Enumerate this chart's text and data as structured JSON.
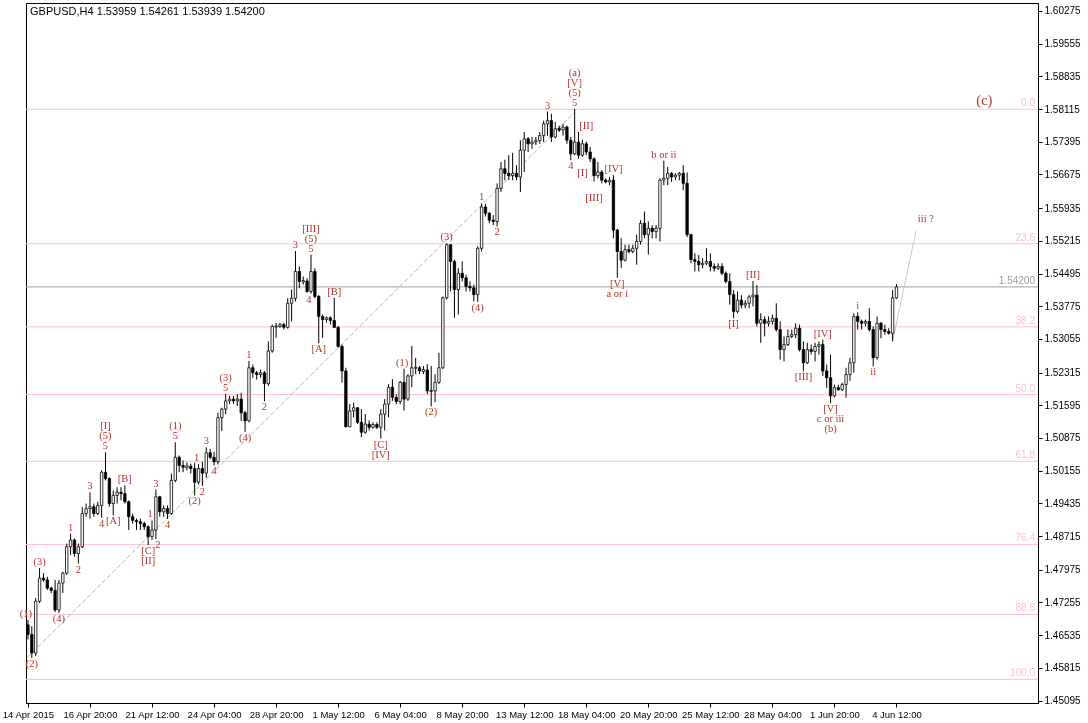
{
  "chart_data": {
    "type": "candlestick",
    "title": "GBPUSD,H4 1.53959 1.54261 1.53939 1.54200",
    "color": "#000000",
    "categories": [
      "14 Apr 2015",
      null,
      null,
      null,
      null,
      null,
      null,
      null,
      null,
      null,
      null,
      null,
      null,
      null,
      null,
      null,
      "16 Apr 20:00",
      null,
      null,
      null,
      null,
      null,
      null,
      null,
      null,
      null,
      null,
      null,
      null,
      null,
      null,
      null,
      "21 Apr 12:00",
      null,
      null,
      null,
      null,
      null,
      null,
      null,
      null,
      null,
      null,
      null,
      null,
      null,
      null,
      null,
      "24 Apr 04:00",
      null,
      null,
      null,
      null,
      null,
      null,
      null,
      null,
      null,
      null,
      null,
      null,
      null,
      null,
      null,
      "28 Apr 20:00",
      null,
      null,
      null,
      null,
      null,
      null,
      null,
      null,
      null,
      null,
      null,
      null,
      null,
      null,
      null,
      "1 May 12:00",
      null,
      null,
      null,
      null,
      null,
      null,
      null,
      null,
      null,
      null,
      null,
      null,
      null,
      null,
      null,
      "6 May 04:00",
      null,
      null,
      null,
      null,
      null,
      null,
      null,
      null,
      null,
      null,
      null,
      null,
      null,
      null,
      null,
      "8 May 20:00",
      null,
      null,
      null,
      null,
      null,
      null,
      null,
      null,
      null,
      null,
      null,
      null,
      null,
      null,
      null,
      "13 May 12:00",
      null,
      null,
      null,
      null,
      null,
      null,
      null,
      null,
      null,
      null,
      null,
      null,
      null,
      null,
      null,
      "18 May 04:00",
      null,
      null,
      null,
      null,
      null,
      null,
      null,
      null,
      null,
      null,
      null,
      null,
      null,
      null,
      null,
      "20 May 20:00",
      null,
      null,
      null,
      null,
      null,
      null,
      null,
      null,
      null,
      null,
      null,
      null,
      null,
      null,
      null,
      "25 May 12:00",
      null,
      null,
      null,
      null,
      null,
      null,
      null,
      null,
      null,
      null,
      null,
      null,
      null,
      null,
      null,
      "28 May 04:00",
      null,
      null,
      null,
      null,
      null,
      null,
      null,
      null,
      null,
      null,
      null,
      null,
      null,
      null,
      null,
      "1 Jun 20:00",
      null,
      null,
      null,
      null,
      null,
      null,
      null,
      null,
      null,
      null,
      null,
      null,
      null,
      null,
      null,
      "4 Jun 12:00",
      null,
      null,
      null,
      null,
      null,
      null,
      null,
      null,
      null,
      null,
      null,
      null,
      null,
      null,
      null,
      null,
      null,
      null,
      null,
      null,
      null,
      null,
      null,
      null,
      null,
      null,
      null,
      null,
      null,
      null,
      null,
      null,
      null,
      null,
      null,
      null
    ],
    "ohlc": [
      [
        1.4676,
        1.4687,
        1.4644,
        1.4655
      ],
      [
        1.4655,
        1.4673,
        1.4603,
        1.4614
      ],
      [
        1.4614,
        1.4735,
        1.4607,
        1.4728
      ],
      [
        1.4728,
        1.4801,
        1.4724,
        1.4779
      ],
      [
        1.4779,
        1.479,
        1.4771,
        1.4775
      ],
      [
        1.4775,
        1.4782,
        1.4753,
        1.4757
      ],
      [
        1.4757,
        1.476,
        1.4746,
        1.4752
      ],
      [
        1.4752,
        1.4775,
        1.4704,
        1.4709
      ],
      [
        1.4709,
        1.4775,
        1.4702,
        1.4768
      ],
      [
        1.4768,
        1.4793,
        1.4746,
        1.479
      ],
      [
        1.479,
        1.4855,
        1.4786,
        1.4848
      ],
      [
        1.4848,
        1.4877,
        1.483,
        1.4863
      ],
      [
        1.4863,
        1.4866,
        1.4826,
        1.4833
      ],
      [
        1.4833,
        1.4855,
        1.4811,
        1.4848
      ],
      [
        1.4848,
        1.4936,
        1.4845,
        1.4921
      ],
      [
        1.4921,
        1.4943,
        1.4914,
        1.4932
      ],
      [
        1.4932,
        1.4968,
        1.491,
        1.4936
      ],
      [
        1.4936,
        1.4943,
        1.4914,
        1.4921
      ],
      [
        1.4921,
        1.4947,
        1.4918,
        1.4939
      ],
      [
        1.4939,
        1.5016,
        1.4912,
        1.5012
      ],
      [
        1.5012,
        1.5056,
        1.4994,
        1.4998
      ],
      [
        1.4998,
        1.5001,
        1.4936,
        1.4943
      ],
      [
        1.4943,
        1.4972,
        1.4917,
        1.4961
      ],
      [
        1.4961,
        1.4979,
        1.4943,
        1.4968
      ],
      [
        1.4968,
        1.4979,
        1.495,
        1.4965
      ],
      [
        1.4965,
        1.4983,
        1.4943,
        1.4947
      ],
      [
        1.4947,
        1.495,
        1.4885,
        1.4914
      ],
      [
        1.4914,
        1.4921,
        1.4899,
        1.4906
      ],
      [
        1.4906,
        1.491,
        1.4885,
        1.4903
      ],
      [
        1.4903,
        1.491,
        1.4885,
        1.4899
      ],
      [
        1.4899,
        1.4903,
        1.4885,
        1.4892
      ],
      [
        1.4892,
        1.4895,
        1.4852,
        1.487
      ],
      [
        1.487,
        1.4906,
        1.4863,
        1.4885
      ],
      [
        1.4885,
        1.4974,
        1.4865,
        1.4958
      ],
      [
        1.4958,
        1.496,
        1.4914,
        1.4925
      ],
      [
        1.4925,
        1.4939,
        1.4914,
        1.4932
      ],
      [
        1.4932,
        1.4939,
        1.4909,
        1.4921
      ],
      [
        1.4921,
        1.5009,
        1.4918,
        1.4994
      ],
      [
        1.4994,
        1.5078,
        1.499,
        1.5045
      ],
      [
        1.5045,
        1.5049,
        1.5012,
        1.5027
      ],
      [
        1.5027,
        1.5038,
        1.5012,
        1.5023
      ],
      [
        1.5023,
        1.5034,
        1.5016,
        1.5025
      ],
      [
        1.5025,
        1.5031,
        1.5009,
        1.502
      ],
      [
        1.502,
        1.5033,
        1.4961,
        1.499
      ],
      [
        1.499,
        1.503,
        1.4985,
        1.502
      ],
      [
        1.502,
        1.5035,
        1.4982,
        1.501
      ],
      [
        1.501,
        1.5067,
        1.5,
        1.5055
      ],
      [
        1.5055,
        1.5063,
        1.5041,
        1.5045
      ],
      [
        1.5045,
        1.5057,
        1.5027,
        1.5035
      ],
      [
        1.5035,
        1.5143,
        1.5029,
        1.5132
      ],
      [
        1.5132,
        1.5154,
        1.5103,
        1.5151
      ],
      [
        1.5151,
        1.5185,
        1.514,
        1.5169
      ],
      [
        1.5169,
        1.518,
        1.5162,
        1.5173
      ],
      [
        1.5173,
        1.518,
        1.5162,
        1.5169
      ],
      [
        1.5169,
        1.5184,
        1.5158,
        1.5173
      ],
      [
        1.5173,
        1.5187,
        1.5125,
        1.5143
      ],
      [
        1.5143,
        1.5147,
        1.5101,
        1.5125
      ],
      [
        1.5125,
        1.5257,
        1.5122,
        1.5242
      ],
      [
        1.5242,
        1.5249,
        1.522,
        1.5231
      ],
      [
        1.5231,
        1.5235,
        1.5216,
        1.5227
      ],
      [
        1.5227,
        1.5238,
        1.522,
        1.5231
      ],
      [
        1.5231,
        1.5235,
        1.5168,
        1.5207
      ],
      [
        1.5207,
        1.53,
        1.5202,
        1.5279
      ],
      [
        1.5279,
        1.5337,
        1.5275,
        1.5333
      ],
      [
        1.5333,
        1.5341,
        1.5308,
        1.5333
      ],
      [
        1.5333,
        1.5341,
        1.533,
        1.5337
      ],
      [
        1.5337,
        1.5341,
        1.5326,
        1.5331
      ],
      [
        1.5331,
        1.5395,
        1.5328,
        1.5384
      ],
      [
        1.5384,
        1.5414,
        1.5344,
        1.5395
      ],
      [
        1.5395,
        1.5499,
        1.5388,
        1.5454
      ],
      [
        1.5454,
        1.5465,
        1.5417,
        1.5432
      ],
      [
        1.5432,
        1.5443,
        1.5425,
        1.5433
      ],
      [
        1.5433,
        1.5439,
        1.5407,
        1.541
      ],
      [
        1.541,
        1.5491,
        1.5405,
        1.5454
      ],
      [
        1.5454,
        1.5461,
        1.5395,
        1.5399
      ],
      [
        1.5399,
        1.5402,
        1.5296,
        1.5355
      ],
      [
        1.5355,
        1.5359,
        1.5308,
        1.5348
      ],
      [
        1.5348,
        1.5355,
        1.5341,
        1.5352
      ],
      [
        1.5352,
        1.5355,
        1.5337,
        1.5346
      ],
      [
        1.5346,
        1.5396,
        1.533,
        1.5331
      ],
      [
        1.5331,
        1.5334,
        1.5286,
        1.5289
      ],
      [
        1.5289,
        1.5293,
        1.5209,
        1.5235
      ],
      [
        1.5235,
        1.5242,
        1.5111,
        1.5112
      ],
      [
        1.5112,
        1.5162,
        1.5111,
        1.5147
      ],
      [
        1.5147,
        1.5165,
        1.5133,
        1.5154
      ],
      [
        1.5154,
        1.5155,
        1.5118,
        1.5122
      ],
      [
        1.5122,
        1.5151,
        1.5089,
        1.51
      ],
      [
        1.51,
        1.514,
        1.5097,
        1.5118
      ],
      [
        1.5118,
        1.5126,
        1.5104,
        1.5111
      ],
      [
        1.5111,
        1.5122,
        1.5108,
        1.5117
      ],
      [
        1.5117,
        1.5122,
        1.5107,
        1.5111
      ],
      [
        1.5111,
        1.5151,
        1.5086,
        1.514
      ],
      [
        1.514,
        1.5173,
        1.5104,
        1.5162
      ],
      [
        1.5162,
        1.5206,
        1.5133,
        1.5199
      ],
      [
        1.5199,
        1.5217,
        1.5169,
        1.5177
      ],
      [
        1.5177,
        1.5184,
        1.5162,
        1.5168
      ],
      [
        1.5168,
        1.5213,
        1.5162,
        1.521
      ],
      [
        1.521,
        1.524,
        1.5148,
        1.5173
      ],
      [
        1.5173,
        1.5228,
        1.5169,
        1.5224
      ],
      [
        1.5224,
        1.529,
        1.5199,
        1.5242
      ],
      [
        1.5242,
        1.5264,
        1.5228,
        1.5242
      ],
      [
        1.5242,
        1.5246,
        1.5228,
        1.5235
      ],
      [
        1.5235,
        1.5246,
        1.5228,
        1.5237
      ],
      [
        1.5237,
        1.525,
        1.5184,
        1.5191
      ],
      [
        1.5191,
        1.5246,
        1.5157,
        1.5191
      ],
      [
        1.5191,
        1.5228,
        1.5166,
        1.521
      ],
      [
        1.521,
        1.5275,
        1.5206,
        1.5242
      ],
      [
        1.5242,
        1.5399,
        1.5239,
        1.5396
      ],
      [
        1.5396,
        1.5516,
        1.5392,
        1.5513
      ],
      [
        1.5513,
        1.5514,
        1.541,
        1.5476
      ],
      [
        1.5476,
        1.548,
        1.5352,
        1.5414
      ],
      [
        1.5414,
        1.5461,
        1.5359,
        1.545
      ],
      [
        1.545,
        1.5476,
        1.5432,
        1.544
      ],
      [
        1.544,
        1.5447,
        1.541,
        1.5421
      ],
      [
        1.5421,
        1.5432,
        1.541,
        1.5418
      ],
      [
        1.5418,
        1.5425,
        1.5388,
        1.5403
      ],
      [
        1.5403,
        1.5509,
        1.5387,
        1.5505
      ],
      [
        1.5505,
        1.5604,
        1.5498,
        1.5596
      ],
      [
        1.5596,
        1.5603,
        1.5575,
        1.5582
      ],
      [
        1.5582,
        1.5585,
        1.556,
        1.5567
      ],
      [
        1.5567,
        1.5578,
        1.5556,
        1.5564
      ],
      [
        1.5564,
        1.5648,
        1.5553,
        1.5637
      ],
      [
        1.5637,
        1.5695,
        1.5629,
        1.568
      ],
      [
        1.568,
        1.57,
        1.5655,
        1.567
      ],
      [
        1.567,
        1.571,
        1.5655,
        1.5665
      ],
      [
        1.5665,
        1.5715,
        1.5655,
        1.567
      ],
      [
        1.567,
        1.5688,
        1.5655,
        1.5662
      ],
      [
        1.5662,
        1.5743,
        1.5629,
        1.5721
      ],
      [
        1.5721,
        1.5761,
        1.5673,
        1.5746
      ],
      [
        1.5746,
        1.575,
        1.5717,
        1.5735
      ],
      [
        1.5735,
        1.575,
        1.5724,
        1.5739
      ],
      [
        1.5739,
        1.575,
        1.5732,
        1.5742
      ],
      [
        1.5742,
        1.5761,
        1.5735,
        1.5753
      ],
      [
        1.5753,
        1.5786,
        1.5739,
        1.5779
      ],
      [
        1.5779,
        1.5806,
        1.5753,
        1.5786
      ],
      [
        1.5786,
        1.5801,
        1.5739,
        1.575
      ],
      [
        1.575,
        1.5783,
        1.5747,
        1.5768
      ],
      [
        1.5768,
        1.5775,
        1.5761,
        1.5766
      ],
      [
        1.5766,
        1.5779,
        1.5753,
        1.5772
      ],
      [
        1.5772,
        1.5775,
        1.5735,
        1.5743
      ],
      [
        1.5743,
        1.575,
        1.5699,
        1.5713
      ],
      [
        1.5713,
        1.5812,
        1.571,
        1.5739
      ],
      [
        1.5739,
        1.5761,
        1.5702,
        1.571
      ],
      [
        1.571,
        1.5744,
        1.5706,
        1.5735
      ],
      [
        1.5735,
        1.574,
        1.571,
        1.5717
      ],
      [
        1.5717,
        1.5728,
        1.5695,
        1.5702
      ],
      [
        1.5702,
        1.5705,
        1.5652,
        1.5665
      ],
      [
        1.5665,
        1.5695,
        1.5659,
        1.5673
      ],
      [
        1.5673,
        1.5677,
        1.5648,
        1.5655
      ],
      [
        1.5655,
        1.5659,
        1.5648,
        1.5651
      ],
      [
        1.5651,
        1.5662,
        1.5644,
        1.5655
      ],
      [
        1.5655,
        1.5666,
        1.5527,
        1.5545
      ],
      [
        1.5545,
        1.5548,
        1.544,
        1.5498
      ],
      [
        1.5498,
        1.5527,
        1.5462,
        1.5479
      ],
      [
        1.5479,
        1.5513,
        1.5476,
        1.5502
      ],
      [
        1.5502,
        1.5513,
        1.5494,
        1.5498
      ],
      [
        1.5498,
        1.5513,
        1.5494,
        1.5505
      ],
      [
        1.5505,
        1.5535,
        1.5469,
        1.552
      ],
      [
        1.552,
        1.5567,
        1.5513,
        1.556
      ],
      [
        1.556,
        1.5586,
        1.5527,
        1.5535
      ],
      [
        1.5535,
        1.5564,
        1.5491,
        1.5549
      ],
      [
        1.5549,
        1.5556,
        1.5527,
        1.5542
      ],
      [
        1.5542,
        1.5556,
        1.5527,
        1.5549
      ],
      [
        1.5549,
        1.5659,
        1.552,
        1.5655
      ],
      [
        1.5655,
        1.5698,
        1.5644,
        1.5659
      ],
      [
        1.5659,
        1.5684,
        1.5644,
        1.567
      ],
      [
        1.567,
        1.5673,
        1.5651,
        1.5662
      ],
      [
        1.5662,
        1.567,
        1.5655,
        1.5666
      ],
      [
        1.5666,
        1.5673,
        1.5655,
        1.567
      ],
      [
        1.567,
        1.5688,
        1.5633,
        1.5648
      ],
      [
        1.5648,
        1.5672,
        1.553,
        1.5535
      ],
      [
        1.5535,
        1.5537,
        1.5472,
        1.548
      ],
      [
        1.548,
        1.5494,
        1.5454,
        1.5476
      ],
      [
        1.5476,
        1.549,
        1.5454,
        1.5469
      ],
      [
        1.5469,
        1.5483,
        1.5461,
        1.5472
      ],
      [
        1.5472,
        1.5505,
        1.5468,
        1.5476
      ],
      [
        1.5476,
        1.5494,
        1.5454,
        1.5465
      ],
      [
        1.5465,
        1.5472,
        1.5454,
        1.5461
      ],
      [
        1.5461,
        1.5472,
        1.5457,
        1.5465
      ],
      [
        1.5465,
        1.5472,
        1.5446,
        1.545
      ],
      [
        1.545,
        1.5454,
        1.5428,
        1.5432
      ],
      [
        1.5432,
        1.545,
        1.5381,
        1.5403
      ],
      [
        1.5403,
        1.5413,
        1.5351,
        1.5366
      ],
      [
        1.5366,
        1.541,
        1.5362,
        1.5391
      ],
      [
        1.5391,
        1.5402,
        1.5373,
        1.538
      ],
      [
        1.538,
        1.5391,
        1.5373,
        1.5384
      ],
      [
        1.5384,
        1.5402,
        1.5373,
        1.5398
      ],
      [
        1.5398,
        1.5433,
        1.5377,
        1.5402
      ],
      [
        1.5402,
        1.5424,
        1.5333,
        1.534
      ],
      [
        1.534,
        1.5362,
        1.5297,
        1.5348
      ],
      [
        1.5348,
        1.5355,
        1.5311,
        1.534
      ],
      [
        1.534,
        1.5355,
        1.5333,
        1.5344
      ],
      [
        1.5344,
        1.5359,
        1.5337,
        1.5351
      ],
      [
        1.5351,
        1.5384,
        1.5322,
        1.5326
      ],
      [
        1.5326,
        1.5344,
        1.526,
        1.5282
      ],
      [
        1.5282,
        1.5311,
        1.5256,
        1.5293
      ],
      [
        1.5293,
        1.5326,
        1.529,
        1.5311
      ],
      [
        1.5311,
        1.5326,
        1.5307,
        1.5315
      ],
      [
        1.5315,
        1.534,
        1.5307,
        1.5329
      ],
      [
        1.5329,
        1.5337,
        1.5278,
        1.5282
      ],
      [
        1.5282,
        1.53,
        1.5234,
        1.5253
      ],
      [
        1.5253,
        1.5297,
        1.525,
        1.5282
      ],
      [
        1.5282,
        1.5293,
        1.5271,
        1.5278
      ],
      [
        1.5278,
        1.5297,
        1.5256,
        1.5289
      ],
      [
        1.5289,
        1.53,
        1.5271,
        1.5293
      ],
      [
        1.5293,
        1.5304,
        1.5224,
        1.5235
      ],
      [
        1.5235,
        1.5249,
        1.5198,
        1.522
      ],
      [
        1.522,
        1.5271,
        1.5164,
        1.518
      ],
      [
        1.518,
        1.5205,
        1.5177,
        1.5198
      ],
      [
        1.5198,
        1.5205,
        1.5191,
        1.5194
      ],
      [
        1.5194,
        1.5209,
        1.5191,
        1.5205
      ],
      [
        1.5205,
        1.5242,
        1.5176,
        1.5227
      ],
      [
        1.5227,
        1.5264,
        1.5213,
        1.5253
      ],
      [
        1.5253,
        1.5362,
        1.5231,
        1.5355
      ],
      [
        1.5355,
        1.5364,
        1.5326,
        1.5344
      ],
      [
        1.5344,
        1.5348,
        1.5326,
        1.534
      ],
      [
        1.534,
        1.5348,
        1.5333,
        1.5344
      ],
      [
        1.5344,
        1.5373,
        1.5322,
        1.5326
      ],
      [
        1.5326,
        1.5333,
        1.5245,
        1.5264
      ],
      [
        1.5264,
        1.5355,
        1.526,
        1.534
      ],
      [
        1.534,
        1.5343,
        1.5307,
        1.5326
      ],
      [
        1.5326,
        1.5337,
        1.5315,
        1.5322
      ],
      [
        1.5322,
        1.5329,
        1.5315,
        1.5318
      ],
      [
        1.5318,
        1.5413,
        1.53,
        1.5396
      ],
      [
        1.53959,
        1.54261,
        1.53939,
        1.542
      ],
      null,
      null,
      null,
      null,
      null,
      null,
      null,
      null,
      null,
      null,
      null,
      null,
      null,
      null,
      null,
      null,
      null,
      null,
      null,
      null,
      null,
      null,
      null,
      null,
      null,
      null,
      null,
      null,
      null,
      null,
      null,
      null,
      null,
      null,
      null,
      null
    ],
    "series": [
      {
        "type": "line",
        "color": "#b4b4b4",
        "line_style": "dashed",
        "values": [
          1.4606,
          1.4614,
          1.4623,
          1.4631,
          1.464,
          1.4648,
          1.4657,
          1.4665,
          1.4674,
          1.4682,
          1.4691,
          1.4699,
          1.4708,
          1.4716,
          1.4725,
          1.4733,
          1.4742,
          1.475,
          1.4759,
          1.4767,
          1.4776,
          1.4784,
          1.4793,
          1.4801,
          1.481,
          1.4818,
          1.4827,
          1.4835,
          1.4844,
          1.4852,
          1.4861,
          1.4869,
          1.4878,
          1.4886,
          1.4895,
          1.4903,
          1.4912,
          1.492,
          1.4929,
          1.4937,
          1.4946,
          1.4954,
          1.4963,
          1.4971,
          1.498,
          1.4988,
          1.4997,
          1.5005,
          1.5014,
          1.5022,
          1.5031,
          1.5039,
          1.5048,
          1.5056,
          1.5065,
          1.5073,
          1.5082,
          1.509,
          1.5099,
          1.5107,
          1.5116,
          1.5124,
          1.5133,
          1.5141,
          1.515,
          1.5158,
          1.5167,
          1.5175,
          1.5184,
          1.5192,
          1.5201,
          1.5209,
          1.5218,
          1.5226,
          1.5235,
          1.5243,
          1.5252,
          1.526,
          1.5269,
          1.5277,
          1.5286,
          1.5294,
          1.5303,
          1.5311,
          1.532,
          1.5328,
          1.5337,
          1.5345,
          1.5354,
          1.5362,
          1.5371,
          1.5379,
          1.5388,
          1.5396,
          1.5405,
          1.5413,
          1.5422,
          1.543,
          1.5439,
          1.5447,
          1.5456,
          1.5464,
          1.5473,
          1.5481,
          1.549,
          1.5498,
          1.5507,
          1.5515,
          1.5524,
          1.5532,
          1.5541,
          1.5549,
          1.5558,
          1.5566,
          1.5575,
          1.5583,
          1.5592,
          1.56,
          1.5609,
          1.5617,
          1.5626,
          1.5634,
          1.5643,
          1.5651,
          1.566,
          1.5668,
          1.5677,
          1.5685,
          1.5694,
          1.5702,
          1.5711,
          1.5719,
          1.5728,
          1.5736,
          1.5745,
          1.5753,
          1.5762,
          1.577,
          1.5779,
          1.5787,
          1.5796,
          1.5804,
          null,
          null,
          null,
          null,
          null,
          null,
          null,
          null,
          null,
          null,
          null,
          null,
          null,
          null,
          null,
          null,
          null,
          null,
          null,
          null,
          null,
          null,
          null,
          null,
          null,
          null,
          null,
          null,
          null,
          null,
          null,
          null,
          null,
          null,
          null,
          null,
          null,
          null,
          null,
          null,
          null,
          null,
          null,
          null,
          null,
          null,
          null,
          null,
          null,
          null,
          null,
          null,
          null,
          null,
          null,
          null,
          null,
          null,
          null,
          null,
          null,
          null,
          null,
          null,
          null,
          null,
          null,
          null,
          null,
          null,
          null,
          null,
          null,
          null,
          null,
          null,
          null,
          null,
          null,
          null,
          null,
          null,
          null,
          null,
          null,
          null,
          null,
          null,
          null,
          null,
          null,
          null,
          null,
          null,
          null,
          null,
          null,
          null,
          null,
          null,
          null,
          null,
          null,
          null,
          null,
          null,
          null,
          null,
          null,
          null,
          null,
          null,
          null,
          null,
          null,
          null,
          null,
          null,
          null
        ]
      },
      {
        "type": "line",
        "name": "iii ?",
        "color": "#c8c8c8",
        "values": [
          null,
          null,
          null,
          null,
          null,
          null,
          null,
          null,
          null,
          null,
          null,
          null,
          null,
          null,
          null,
          null,
          null,
          null,
          null,
          null,
          null,
          null,
          null,
          null,
          null,
          null,
          null,
          null,
          null,
          null,
          null,
          null,
          null,
          null,
          null,
          null,
          null,
          null,
          null,
          null,
          null,
          null,
          null,
          null,
          null,
          null,
          null,
          null,
          null,
          null,
          null,
          null,
          null,
          null,
          null,
          null,
          null,
          null,
          null,
          null,
          null,
          null,
          null,
          null,
          null,
          null,
          null,
          null,
          null,
          null,
          null,
          null,
          null,
          null,
          null,
          null,
          null,
          null,
          null,
          null,
          null,
          null,
          null,
          null,
          null,
          null,
          null,
          null,
          null,
          null,
          null,
          null,
          null,
          null,
          null,
          null,
          null,
          null,
          null,
          null,
          null,
          null,
          null,
          null,
          null,
          null,
          null,
          null,
          null,
          null,
          null,
          null,
          null,
          null,
          null,
          null,
          null,
          null,
          null,
          null,
          null,
          null,
          null,
          null,
          null,
          null,
          null,
          null,
          null,
          null,
          null,
          null,
          null,
          null,
          null,
          null,
          null,
          null,
          null,
          null,
          null,
          null,
          null,
          null,
          null,
          null,
          null,
          null,
          null,
          null,
          null,
          null,
          null,
          null,
          null,
          null,
          null,
          null,
          null,
          null,
          null,
          null,
          null,
          null,
          null,
          null,
          null,
          null,
          null,
          null,
          null,
          null,
          null,
          null,
          null,
          null,
          null,
          null,
          null,
          null,
          null,
          null,
          null,
          null,
          null,
          null,
          null,
          null,
          null,
          null,
          null,
          null,
          null,
          null,
          null,
          null,
          null,
          null,
          null,
          null,
          null,
          null,
          null,
          null,
          null,
          null,
          null,
          null,
          null,
          null,
          null,
          null,
          null,
          null,
          null,
          null,
          null,
          null,
          null,
          null,
          null,
          null,
          null,
          1.53,
          1.534,
          1.538,
          1.5421,
          1.5461,
          1.5501,
          1.5542,
          null,
          null,
          null,
          null,
          null,
          null,
          null,
          null,
          null,
          null,
          null,
          null,
          null,
          null,
          null,
          null,
          null,
          null,
          null,
          null,
          null,
          null,
          null,
          null,
          null,
          null,
          null,
          null,
          null,
          null,
          null
        ]
      }
    ],
    "ylim": [
      1.4504,
      1.6045
    ],
    "yticks": [
      1.45095,
      1.45815,
      1.46535,
      1.47255,
      1.47975,
      1.48715,
      1.49435,
      1.50155,
      1.50875,
      1.51595,
      1.52315,
      1.53055,
      1.53775,
      1.54495,
      1.55215,
      1.55935,
      1.56675,
      1.57395,
      1.58115,
      1.58835,
      1.59555,
      1.60275
    ],
    "ref_lines": [
      {
        "axis": "y",
        "value": 1.5811,
        "color": "#ffc0cb"
      },
      {
        "axis": "y",
        "value": 1.5515,
        "color": "#ffc0cb"
      },
      {
        "axis": "y",
        "value": 1.5332,
        "color": "#ffc0cb"
      },
      {
        "axis": "y",
        "value": 1.5183,
        "color": "#ffc0cb"
      },
      {
        "axis": "y",
        "value": 1.5036,
        "color": "#ffc0cb"
      },
      {
        "axis": "y",
        "value": 1.4853,
        "color": "#ffc0cb"
      },
      {
        "axis": "y",
        "value": 1.4699,
        "color": "#ffc0cb"
      },
      {
        "axis": "y",
        "value": 1.4556,
        "color": "#ffc0cb"
      },
      {
        "axis": "y",
        "value": 1.542,
        "label": "1.54200",
        "color": "#a0a0a0"
      }
    ],
    "annotations": [
      {
        "text": "(1)",
        "y": 1.4687
      },
      {
        "text": "(2)",
        "y": 1.4603
      },
      {
        "text": "(3)",
        "y": 1.4801
      },
      {
        "text": "(4)",
        "y": 1.4702
      },
      {
        "text": "1",
        "y": 1.4877
      },
      {
        "text": "2",
        "y": 1.4811
      },
      {
        "text": "3",
        "y": 1.4968
      },
      {
        "text": "4",
        "y": 1.4912
      },
      {
        "text": "5",
        "y": 1.5056
      },
      {
        "text": "(5)",
        "y": 1.5056
      },
      {
        "text": "[I]",
        "y": 1.5056
      },
      {
        "text": "[A]",
        "y": 1.4917
      },
      {
        "text": "[B]",
        "y": 1.4983
      },
      {
        "text": "[C]",
        "y": 1.4852
      },
      {
        "text": "[II]",
        "y": 1.4852
      },
      {
        "text": "1",
        "y": 1.4906
      },
      {
        "text": "3",
        "y": 1.4974
      },
      {
        "text": "2",
        "y": 1.4865
      },
      {
        "text": "4",
        "y": 1.4909
      },
      {
        "text": "5",
        "y": 1.5078
      },
      {
        "text": "(1)",
        "y": 1.5078
      },
      {
        "text": "(2)",
        "y": 1.4961
      },
      {
        "text": "1",
        "y": 1.503
      },
      {
        "text": "2",
        "y": 1.4982
      },
      {
        "text": "3",
        "y": 1.5067
      },
      {
        "text": "4",
        "y": 1.5027
      },
      {
        "text": "5",
        "y": 1.5185
      },
      {
        "text": "(3)",
        "y": 1.5185
      },
      {
        "text": "(4)",
        "y": 1.5101
      },
      {
        "text": "1",
        "y": 1.5257
      },
      {
        "text": "2",
        "y": 1.5168
      },
      {
        "text": "3",
        "y": 1.5499
      },
      {
        "text": "5",
        "y": 1.5491
      },
      {
        "text": "(5)",
        "y": 1.5491
      },
      {
        "text": "[III]",
        "y": 1.5491
      },
      {
        "text": "4",
        "y": 1.5405
      },
      {
        "text": "[A]",
        "y": 1.5296
      },
      {
        "text": "[B]",
        "y": 1.5396
      },
      {
        "text": "[C]",
        "y": 1.5086
      },
      {
        "text": "[IV]",
        "y": 1.5086
      },
      {
        "text": "(1)",
        "y": 1.524
      },
      {
        "text": "(2)",
        "y": 1.5157
      },
      {
        "text": "(3)",
        "y": 1.5516
      },
      {
        "text": "(4)",
        "y": 1.5387
      },
      {
        "text": "1",
        "y": 1.5604
      },
      {
        "text": "2",
        "y": 1.5553
      },
      {
        "text": "3",
        "y": 1.5806
      },
      {
        "text": "4",
        "y": 1.5699
      },
      {
        "text": "5",
        "y": 1.5812
      },
      {
        "text": "(5)",
        "y": 1.5812
      },
      {
        "text": "[V]",
        "y": 1.5812
      },
      {
        "text": "(a)",
        "y": 1.5812
      },
      {
        "text": "[I]",
        "y": 1.5706
      },
      {
        "text": "[II]",
        "y": 1.574
      },
      {
        "text": "[III]",
        "y": 1.5652
      },
      {
        "text": "[IV]",
        "y": 1.5666
      },
      {
        "text": "[V]",
        "y": 1.544
      },
      {
        "text": "a or i",
        "y": 1.544
      },
      {
        "text": "b or ii",
        "y": 1.5698
      },
      {
        "text": "[I]",
        "y": 1.5351
      },
      {
        "text": "[II]",
        "y": 1.5433
      },
      {
        "text": "[III]",
        "y": 1.5234
      },
      {
        "text": "[IV]",
        "y": 1.5304
      },
      {
        "text": "[V]",
        "y": 1.5164
      },
      {
        "text": "c or iii",
        "y": 1.5164
      },
      {
        "text": "(b)",
        "y": 1.5164
      },
      {
        "text": "i",
        "y": 1.5364
      },
      {
        "text": "ii",
        "y": 1.5245
      },
      "(c)",
      {
        "text": "0.0",
        "y": 1.5811
      },
      {
        "text": "23.6",
        "y": 1.5515
      },
      {
        "text": "38.2",
        "y": 1.5332
      },
      {
        "text": "50.0",
        "y": 1.5183
      },
      {
        "text": "61.8",
        "y": 1.5036
      },
      {
        "text": "76.4",
        "y": 1.4853
      },
      {
        "text": "88.6",
        "y": 1.4699
      },
      {
        "text": "100.0",
        "y": 1.4556
      }
    ]
  }
}
